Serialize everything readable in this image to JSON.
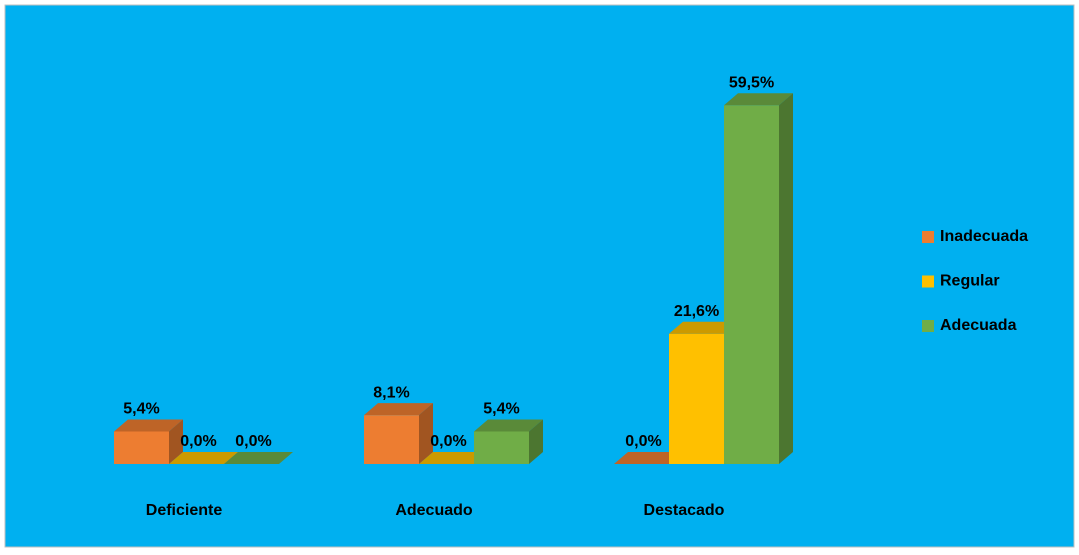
{
  "chart_data": {
    "type": "bar3d",
    "categories": [
      "Deficiente",
      "Adecuado",
      "Destacado"
    ],
    "series": [
      {
        "name": "Inadecuada",
        "color": "#ED7D31",
        "values": [
          5.4,
          8.1,
          0.0
        ],
        "value_labels": [
          "5,4%",
          "8,1%",
          "0,0%"
        ]
      },
      {
        "name": "Regular",
        "color": "#FFC000",
        "values": [
          0.0,
          0.0,
          21.6
        ],
        "value_labels": [
          "0,0%",
          "0,0%",
          "21,6%"
        ]
      },
      {
        "name": "Adecuada",
        "color": "#70AD47",
        "values": [
          0.0,
          5.4,
          59.5
        ],
        "value_labels": [
          "0,0%",
          "5,4%",
          "59,5%"
        ]
      }
    ],
    "legend": "right"
  }
}
